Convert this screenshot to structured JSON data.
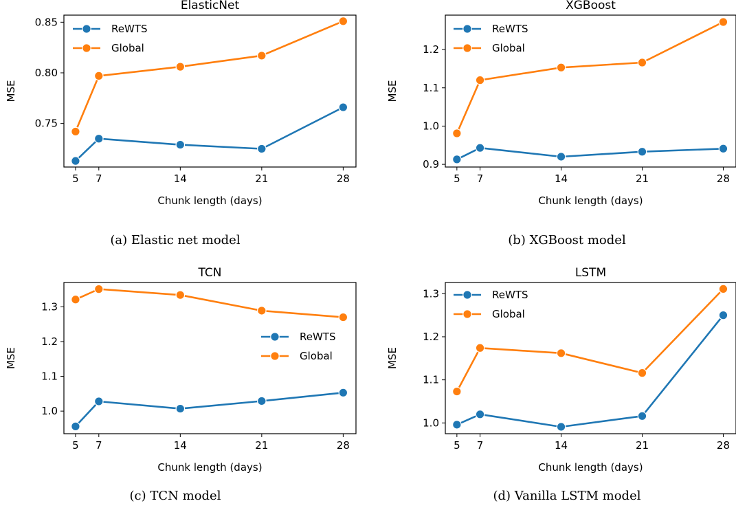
{
  "chart_data": [
    {
      "type": "line",
      "title": "ElasticNet",
      "xlabel": "Chunk length (days)",
      "ylabel": "MSE",
      "caption": "(a) Elastic net model",
      "x": [
        5,
        7,
        14,
        21,
        28
      ],
      "xticks": [
        "5",
        "7",
        "14",
        "21",
        "28"
      ],
      "yticks": [
        0.75,
        0.8,
        0.85
      ],
      "ytick_labels": [
        "0.75",
        "0.80",
        "0.85"
      ],
      "ylim": [
        0.707,
        0.857
      ],
      "legend_position": "top-left",
      "series": [
        {
          "name": "ReWTS",
          "color": "#1f77b4",
          "values": [
            0.713,
            0.735,
            0.729,
            0.725,
            0.766
          ]
        },
        {
          "name": "Global",
          "color": "#ff7f0e",
          "values": [
            0.742,
            0.797,
            0.806,
            0.817,
            0.851
          ]
        }
      ]
    },
    {
      "type": "line",
      "title": "XGBoost",
      "xlabel": "Chunk length (days)",
      "ylabel": "MSE",
      "caption": "(b) XGBoost model",
      "x": [
        5,
        7,
        14,
        21,
        28
      ],
      "xticks": [
        "5",
        "7",
        "14",
        "21",
        "28"
      ],
      "yticks": [
        0.9,
        1.0,
        1.1,
        1.2
      ],
      "ytick_labels": [
        "0.9",
        "1.0",
        "1.1",
        "1.2"
      ],
      "ylim": [
        0.893,
        1.29
      ],
      "legend_position": "top-left",
      "series": [
        {
          "name": "ReWTS",
          "color": "#1f77b4",
          "values": [
            0.913,
            0.943,
            0.92,
            0.933,
            0.941
          ]
        },
        {
          "name": "Global",
          "color": "#ff7f0e",
          "values": [
            0.981,
            1.12,
            1.153,
            1.166,
            1.272
          ]
        }
      ]
    },
    {
      "type": "line",
      "title": "TCN",
      "xlabel": "Chunk length (days)",
      "ylabel": "MSE",
      "caption": "(c) TCN model",
      "x": [
        5,
        7,
        14,
        21,
        28
      ],
      "xticks": [
        "5",
        "7",
        "14",
        "21",
        "28"
      ],
      "yticks": [
        1.0,
        1.1,
        1.2,
        1.3
      ],
      "ytick_labels": [
        "1.0",
        "1.1",
        "1.2",
        "1.3"
      ],
      "ylim": [
        0.935,
        1.37
      ],
      "legend_position": "center-right",
      "series": [
        {
          "name": "ReWTS",
          "color": "#1f77b4",
          "values": [
            0.956,
            1.028,
            1.007,
            1.029,
            1.053
          ]
        },
        {
          "name": "Global",
          "color": "#ff7f0e",
          "values": [
            1.321,
            1.351,
            1.334,
            1.289,
            1.27
          ]
        }
      ]
    },
    {
      "type": "line",
      "title": "LSTM",
      "xlabel": "Chunk length (days)",
      "ylabel": "MSE",
      "caption": "(d) Vanilla LSTM model",
      "x": [
        5,
        7,
        14,
        21,
        28
      ],
      "xticks": [
        "5",
        "7",
        "14",
        "21",
        "28"
      ],
      "yticks": [
        1.0,
        1.1,
        1.2,
        1.3
      ],
      "ytick_labels": [
        "1.0",
        "1.1",
        "1.2",
        "1.3"
      ],
      "ylim": [
        0.975,
        1.326
      ],
      "legend_position": "top-left",
      "series": [
        {
          "name": "ReWTS",
          "color": "#1f77b4",
          "values": [
            0.996,
            1.02,
            0.991,
            1.016,
            1.25
          ]
        },
        {
          "name": "Global",
          "color": "#ff7f0e",
          "values": [
            1.073,
            1.174,
            1.162,
            1.116,
            1.311
          ]
        }
      ]
    }
  ]
}
